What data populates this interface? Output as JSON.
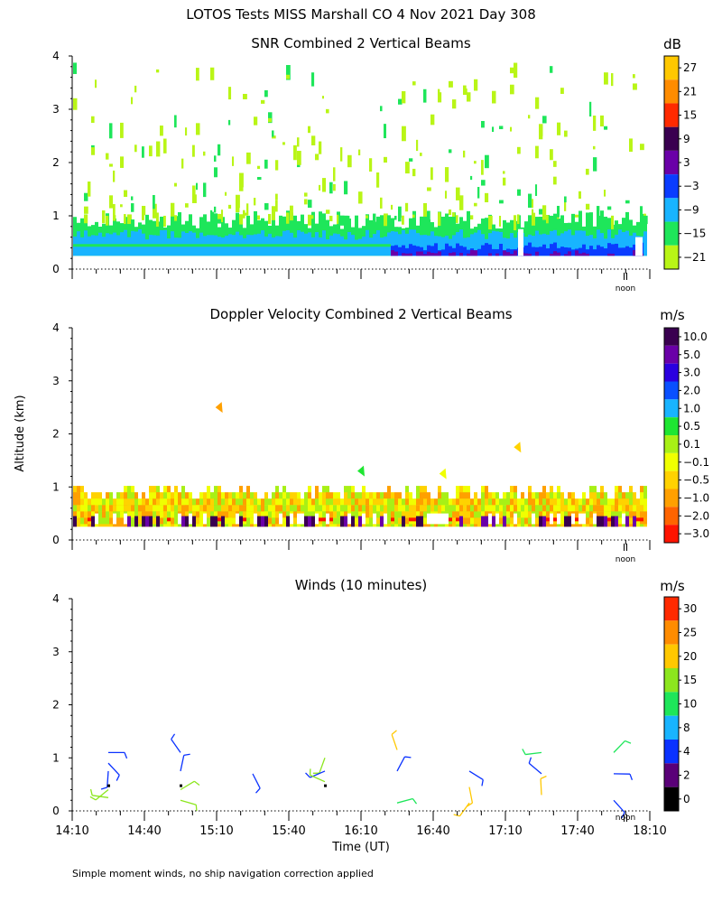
{
  "figure": {
    "title": "LOTOS Tests MISS Marshall CO   4 Nov 2021 Day 308",
    "ylabel": "Altitude (km)",
    "xlabel": "Time (UT)",
    "noon_label": "noon",
    "footnote": "Simple moment winds, no ship navigation correction applied",
    "x_ticks": [
      "14:10",
      "14:40",
      "15:10",
      "15:40",
      "16:10",
      "16:40",
      "17:10",
      "17:40",
      "18:10"
    ],
    "y_ticks": [
      "0",
      "1",
      "2",
      "3",
      "4"
    ]
  },
  "chart_data": [
    {
      "type": "heatmap",
      "title": "SNR Combined 2 Vertical Beams",
      "xlabel": "",
      "ylabel": "Altitude (km)",
      "xlim": [
        "14:10",
        "18:10"
      ],
      "ylim": [
        0,
        4
      ],
      "colorbar": {
        "unit": "dB",
        "labels": [
          "27",
          "21",
          "15",
          "9",
          "3",
          "−3",
          "−9",
          "−15",
          "−21"
        ],
        "colors": [
          "#ffc800",
          "#ff8c00",
          "#ff2a00",
          "#3a0050",
          "#6a00a8",
          "#0a3cff",
          "#18b4ff",
          "#1ee65a",
          "#b9f516"
        ]
      },
      "layers": [
        {
          "name": "strong return (purple/blue)",
          "time_range": [
            "16:40",
            "18:00"
          ],
          "altitude_km": [
            0.25,
            0.45
          ]
        },
        {
          "name": "moderate return (cyan)",
          "time_range": [
            "14:10",
            "18:00"
          ],
          "altitude_km": [
            0.25,
            0.7
          ]
        },
        {
          "name": "weak return (green)",
          "time_range": [
            "14:10",
            "18:00"
          ],
          "altitude_km": [
            0.25,
            1.0
          ]
        },
        {
          "name": "scattered weak echoes (yellow-green)",
          "time_range": [
            "14:10",
            "18:00"
          ],
          "altitude_km": [
            1.0,
            4.0
          ]
        }
      ]
    },
    {
      "type": "heatmap",
      "title": "Doppler Velocity Combined 2 Vertical Beams",
      "xlabel": "",
      "ylabel": "Altitude (km)",
      "xlim": [
        "14:10",
        "18:10"
      ],
      "ylim": [
        0,
        4
      ],
      "colorbar": {
        "unit": "m/s",
        "labels": [
          "10.0",
          "5.0",
          "3.0",
          "2.0",
          "1.0",
          "0.5",
          "0.1",
          "−0.1",
          "−0.5",
          "−1.0",
          "−2.0",
          "−3.0"
        ],
        "colors": [
          "#3a0050",
          "#6a00a8",
          "#2a00e0",
          "#0a50ff",
          "#18b4ff",
          "#1ee632",
          "#a8f016",
          "#f0ff00",
          "#ffd200",
          "#ffa000",
          "#ff6400",
          "#ff1400"
        ]
      },
      "patches": [
        {
          "time": "15:11",
          "altitude_km": 2.5,
          "value_class": "-0.5 to -1.0"
        },
        {
          "time": "16:10",
          "altitude_km": 1.3,
          "value_class": "0.5"
        },
        {
          "time": "16:44",
          "altitude_km": 1.25,
          "value_class": "-0.1"
        },
        {
          "time": "17:15",
          "altitude_km": 1.75,
          "value_class": "-0.5"
        }
      ]
    },
    {
      "type": "wind_barbs",
      "title": "Winds (10 minutes)",
      "xlabel": "Time (UT)",
      "ylabel": "Altitude (km)",
      "xlim": [
        "14:10",
        "18:10"
      ],
      "ylim": [
        0,
        4
      ],
      "colorbar": {
        "unit": "m/s",
        "labels": [
          "30",
          "25",
          "20",
          "15",
          "10",
          "8",
          "4",
          "2",
          "0"
        ],
        "colors": [
          "#ff2a00",
          "#ff8c00",
          "#ffc800",
          "#8ce61e",
          "#1ee65a",
          "#18b4ff",
          "#0a32ff",
          "#5a0078",
          "#000000"
        ]
      },
      "barbs": [
        {
          "time": "14:25",
          "altitude_km": 1.1,
          "speed": 4
        },
        {
          "time": "14:25",
          "altitude_km": 0.9,
          "speed": 4
        },
        {
          "time": "14:25",
          "altitude_km": 0.75,
          "speed": 4
        },
        {
          "time": "14:25",
          "altitude_km": 0.4,
          "speed": 15
        },
        {
          "time": "14:25",
          "altitude_km": 0.25,
          "speed": 15
        },
        {
          "time": "14:55",
          "altitude_km": 1.1,
          "speed": 4
        },
        {
          "time": "14:55",
          "altitude_km": 0.75,
          "speed": 4
        },
        {
          "time": "14:55",
          "altitude_km": 0.4,
          "speed": 15
        },
        {
          "time": "14:55",
          "altitude_km": 0.2,
          "speed": 15
        },
        {
          "time": "15:25",
          "altitude_km": 0.7,
          "speed": 4
        },
        {
          "time": "15:55",
          "altitude_km": 1.0,
          "speed": 15
        },
        {
          "time": "15:55",
          "altitude_km": 0.75,
          "speed": 4
        },
        {
          "time": "15:55",
          "altitude_km": 0.55,
          "speed": 15
        },
        {
          "time": "16:25",
          "altitude_km": 1.15,
          "speed": 20
        },
        {
          "time": "16:25",
          "altitude_km": 0.75,
          "speed": 4
        },
        {
          "time": "16:25",
          "altitude_km": 0.15,
          "speed": 10
        },
        {
          "time": "16:55",
          "altitude_km": 0.75,
          "speed": 4
        },
        {
          "time": "16:55",
          "altitude_km": 0.45,
          "speed": 20
        },
        {
          "time": "16:55",
          "altitude_km": 0.15,
          "speed": 20
        },
        {
          "time": "17:25",
          "altitude_km": 1.1,
          "speed": 10
        },
        {
          "time": "17:25",
          "altitude_km": 0.7,
          "speed": 4
        },
        {
          "time": "17:25",
          "altitude_km": 0.3,
          "speed": 20
        },
        {
          "time": "17:55",
          "altitude_km": 1.1,
          "speed": 10
        },
        {
          "time": "17:55",
          "altitude_km": 0.7,
          "speed": 4
        },
        {
          "time": "17:55",
          "altitude_km": 0.2,
          "speed": 4
        }
      ]
    }
  ]
}
